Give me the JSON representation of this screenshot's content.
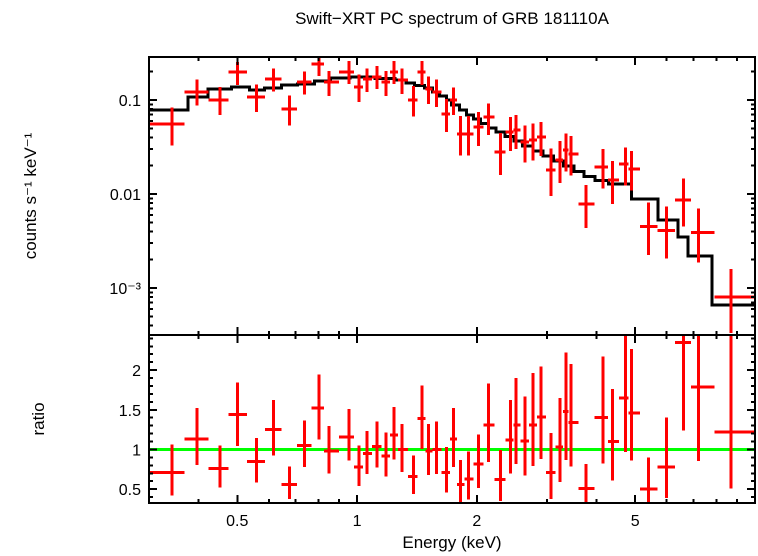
{
  "header": {
    "title": "Swift−XRT PC spectrum of GRB 181110A"
  },
  "chart_data": [
    {
      "id": "spectrum-panel",
      "type": "scatter",
      "title": "Swift−XRT PC spectrum of GRB 181110A",
      "xlabel": "",
      "ylabel": "counts s⁻¹ keV⁻¹",
      "x_scale": "log",
      "y_scale": "log",
      "xlim": [
        0.3,
        10
      ],
      "ylim": [
        0.000316,
        0.2866
      ],
      "grid": false,
      "legend": "none",
      "colors": {
        "data": "#ff0000",
        "model": "#000000",
        "axis": "#000000"
      },
      "x_major_ticks": [
        {
          "v": 0.5,
          "l": "0.5"
        },
        {
          "v": 1,
          "l": "1"
        },
        {
          "v": 2,
          "l": "2"
        },
        {
          "v": 5,
          "l": "5"
        }
      ],
      "x_minor_ticks": [
        0.4,
        0.6,
        0.7,
        0.8,
        0.9,
        3,
        4,
        6,
        7,
        8,
        9
      ],
      "y_major_ticks": [
        {
          "v": 0.1,
          "l": "0.1"
        },
        {
          "v": 0.01,
          "l": "0.01"
        },
        {
          "v": 0.001,
          "l": "10⁻³"
        }
      ],
      "points_columns": [
        "energy_keV",
        "counts_s-1_keV-1",
        "err_factor_down",
        "err_factor_up"
      ],
      "points": [
        [
          0.343,
          0.0556,
          1.7,
          1.5
        ],
        [
          0.396,
          0.122,
          1.4,
          1.35
        ],
        [
          0.452,
          0.1,
          1.45,
          1.38
        ],
        [
          0.501,
          0.199,
          1.38,
          1.28
        ],
        [
          0.559,
          0.108,
          1.45,
          1.35
        ],
        [
          0.617,
          0.167,
          1.35,
          1.3
        ],
        [
          0.676,
          0.08,
          1.5,
          1.4
        ],
        [
          0.737,
          0.155,
          1.35,
          1.3
        ],
        [
          0.803,
          0.242,
          1.35,
          1.28
        ],
        [
          0.851,
          0.155,
          1.4,
          1.32
        ],
        [
          0.955,
          0.199,
          1.35,
          1.3
        ],
        [
          1.012,
          0.138,
          1.45,
          1.35
        ],
        [
          1.059,
          0.167,
          1.38,
          1.3
        ],
        [
          1.122,
          0.176,
          1.35,
          1.3
        ],
        [
          1.182,
          0.155,
          1.4,
          1.32
        ],
        [
          1.238,
          0.199,
          1.35,
          1.3
        ],
        [
          1.296,
          0.163,
          1.4,
          1.32
        ],
        [
          1.388,
          0.1,
          1.5,
          1.4
        ],
        [
          1.454,
          0.199,
          1.38,
          1.3
        ],
        [
          1.514,
          0.131,
          1.45,
          1.35
        ],
        [
          1.585,
          0.122,
          1.45,
          1.35
        ],
        [
          1.679,
          0.071,
          1.55,
          1.45
        ],
        [
          1.748,
          0.1,
          1.45,
          1.35
        ],
        [
          1.82,
          0.0435,
          1.7,
          1.55
        ],
        [
          1.905,
          0.0435,
          1.7,
          1.55
        ],
        [
          2.018,
          0.0516,
          1.6,
          1.45
        ],
        [
          2.138,
          0.0659,
          1.55,
          1.4
        ],
        [
          2.291,
          0.028,
          1.75,
          1.6
        ],
        [
          2.427,
          0.0457,
          1.6,
          1.45
        ],
        [
          2.512,
          0.048,
          1.6,
          1.45
        ],
        [
          2.645,
          0.0357,
          1.65,
          1.5
        ],
        [
          2.77,
          0.0375,
          1.65,
          1.5
        ],
        [
          2.901,
          0.0404,
          1.6,
          1.45
        ],
        [
          3.073,
          0.018,
          1.9,
          1.7
        ],
        [
          3.236,
          0.023,
          1.75,
          1.6
        ],
        [
          3.35,
          0.0294,
          1.7,
          1.5
        ],
        [
          3.447,
          0.0266,
          1.7,
          1.55
        ],
        [
          3.758,
          0.0078,
          1.8,
          1.6
        ],
        [
          4.145,
          0.0194,
          1.7,
          1.55
        ],
        [
          4.39,
          0.0141,
          1.8,
          1.6
        ],
        [
          4.732,
          0.0209,
          1.7,
          1.5
        ],
        [
          4.898,
          0.0185,
          1.7,
          1.55
        ],
        [
          5.402,
          0.0045,
          2.0,
          1.8
        ],
        [
          5.991,
          0.0041,
          2.0,
          1.8
        ],
        [
          6.607,
          0.0086,
          1.9,
          1.7
        ],
        [
          7.202,
          0.0039,
          2.1,
          1.8
        ],
        [
          8.71,
          0.0008,
          2.4,
          2.0
        ]
      ],
      "model_steps_columns": [
        "e_lo_keV",
        "e_hi_keV",
        "counts_s-1_keV-1"
      ],
      "model_steps": [
        [
          0.3,
          0.376,
          0.078
        ],
        [
          0.376,
          0.422,
          0.108
        ],
        [
          0.422,
          0.484,
          0.131
        ],
        [
          0.484,
          0.537,
          0.138
        ],
        [
          0.537,
          0.585,
          0.127
        ],
        [
          0.585,
          0.646,
          0.134
        ],
        [
          0.646,
          0.708,
          0.144
        ],
        [
          0.708,
          0.781,
          0.148
        ],
        [
          0.781,
          0.857,
          0.159
        ],
        [
          0.857,
          0.96,
          0.171
        ],
        [
          0.96,
          1.109,
          0.176
        ],
        [
          1.109,
          1.244,
          0.169
        ],
        [
          1.244,
          1.326,
          0.163
        ],
        [
          1.326,
          1.396,
          0.152
        ],
        [
          1.396,
          1.478,
          0.143
        ],
        [
          1.478,
          1.548,
          0.134
        ],
        [
          1.548,
          1.611,
          0.122
        ],
        [
          1.611,
          1.678,
          0.11
        ],
        [
          1.678,
          1.727,
          0.1
        ],
        [
          1.727,
          1.809,
          0.0885
        ],
        [
          1.809,
          1.883,
          0.0783
        ],
        [
          1.883,
          1.96,
          0.0693
        ],
        [
          1.96,
          2.041,
          0.0628
        ],
        [
          2.041,
          2.137,
          0.0562
        ],
        [
          2.137,
          2.236,
          0.0503
        ],
        [
          2.236,
          2.352,
          0.0455
        ],
        [
          2.352,
          2.477,
          0.0408
        ],
        [
          2.477,
          2.607,
          0.0366
        ],
        [
          2.607,
          2.766,
          0.0323
        ],
        [
          2.766,
          2.935,
          0.0286
        ],
        [
          2.935,
          3.114,
          0.0253
        ],
        [
          3.114,
          3.304,
          0.0224
        ],
        [
          3.304,
          3.505,
          0.0198
        ],
        [
          3.505,
          3.719,
          0.0174
        ],
        [
          3.719,
          3.963,
          0.0154
        ],
        [
          3.963,
          4.29,
          0.0139
        ],
        [
          4.29,
          4.898,
          0.0127
        ],
        [
          4.898,
          5.7,
          0.00885
        ],
        [
          5.7,
          6.41,
          0.0053
        ],
        [
          6.41,
          6.79,
          0.0035
        ],
        [
          6.79,
          7.8,
          0.0022
        ],
        [
          7.8,
          10.0,
          0.00066
        ]
      ]
    },
    {
      "id": "ratio-panel",
      "type": "scatter",
      "xlabel": "Energy (keV)",
      "ylabel": "ratio",
      "x_scale": "log",
      "y_scale": "linear",
      "xlim": [
        0.3,
        10
      ],
      "ylim": [
        0.326,
        2.442
      ],
      "grid": false,
      "ref_line": {
        "value": 1,
        "color": "#00ff00"
      },
      "colors": {
        "data": "#ff0000",
        "axis": "#000000"
      },
      "x_major_ticks": [
        {
          "v": 0.5,
          "l": "0.5"
        },
        {
          "v": 1,
          "l": "1"
        },
        {
          "v": 2,
          "l": "2"
        },
        {
          "v": 5,
          "l": "5"
        }
      ],
      "x_minor_ticks": [
        0.4,
        0.6,
        0.7,
        0.8,
        0.9,
        3,
        4,
        6,
        7,
        8,
        9
      ],
      "y_major_ticks": [
        {
          "v": 0.5,
          "l": "0.5"
        },
        {
          "v": 1,
          "l": "1"
        },
        {
          "v": 1.5,
          "l": "1.5"
        },
        {
          "v": 2,
          "l": "2"
        }
      ],
      "y_minor_step": 0.1,
      "points_columns": [
        "energy_keV",
        "ratio",
        "err_factor_down",
        "err_factor_up"
      ],
      "points": [
        [
          0.343,
          0.71,
          1.7,
          1.5
        ],
        [
          0.396,
          1.13,
          1.4,
          1.35
        ],
        [
          0.452,
          0.76,
          1.45,
          1.38
        ],
        [
          0.501,
          1.44,
          1.38,
          1.28
        ],
        [
          0.559,
          0.85,
          1.45,
          1.35
        ],
        [
          0.617,
          1.25,
          1.35,
          1.3
        ],
        [
          0.676,
          0.56,
          1.5,
          1.4
        ],
        [
          0.737,
          1.05,
          1.35,
          1.3
        ],
        [
          0.803,
          1.52,
          1.35,
          1.28
        ],
        [
          0.851,
          0.98,
          1.4,
          1.32
        ],
        [
          0.955,
          1.16,
          1.35,
          1.3
        ],
        [
          1.012,
          0.78,
          1.45,
          1.35
        ],
        [
          1.059,
          0.95,
          1.38,
          1.3
        ],
        [
          1.122,
          1.04,
          1.35,
          1.3
        ],
        [
          1.182,
          0.92,
          1.4,
          1.32
        ],
        [
          1.238,
          1.18,
          1.35,
          1.3
        ],
        [
          1.296,
          1.0,
          1.4,
          1.32
        ],
        [
          1.388,
          0.66,
          1.5,
          1.4
        ],
        [
          1.454,
          1.39,
          1.38,
          1.3
        ],
        [
          1.514,
          0.98,
          1.45,
          1.35
        ],
        [
          1.585,
          1.0,
          1.45,
          1.35
        ],
        [
          1.679,
          0.71,
          1.55,
          1.45
        ],
        [
          1.748,
          1.13,
          1.45,
          1.35
        ],
        [
          1.82,
          0.56,
          1.7,
          1.55
        ],
        [
          1.905,
          0.63,
          1.7,
          1.55
        ],
        [
          2.018,
          0.82,
          1.6,
          1.45
        ],
        [
          2.138,
          1.31,
          1.55,
          1.4
        ],
        [
          2.291,
          0.62,
          1.75,
          1.6
        ],
        [
          2.427,
          1.12,
          1.6,
          1.45
        ],
        [
          2.512,
          1.31,
          1.6,
          1.45
        ],
        [
          2.645,
          1.11,
          1.65,
          1.5
        ],
        [
          2.77,
          1.31,
          1.65,
          1.5
        ],
        [
          2.901,
          1.41,
          1.6,
          1.45
        ],
        [
          3.073,
          0.71,
          1.9,
          1.7
        ],
        [
          3.236,
          1.03,
          1.75,
          1.6
        ],
        [
          3.35,
          1.48,
          1.7,
          1.5
        ],
        [
          3.447,
          1.34,
          1.7,
          1.55
        ],
        [
          3.758,
          0.51,
          1.8,
          1.6
        ],
        [
          4.145,
          1.4,
          1.7,
          1.55
        ],
        [
          4.39,
          1.1,
          1.8,
          1.6
        ],
        [
          4.732,
          1.65,
          1.7,
          1.5
        ],
        [
          4.898,
          1.46,
          1.7,
          1.55
        ],
        [
          5.402,
          0.5,
          2.0,
          1.8
        ],
        [
          5.991,
          0.78,
          2.0,
          1.8
        ],
        [
          6.607,
          2.35,
          1.9,
          1.7
        ],
        [
          7.202,
          1.79,
          2.1,
          1.8
        ],
        [
          8.71,
          1.22,
          2.4,
          2.0
        ]
      ]
    }
  ]
}
